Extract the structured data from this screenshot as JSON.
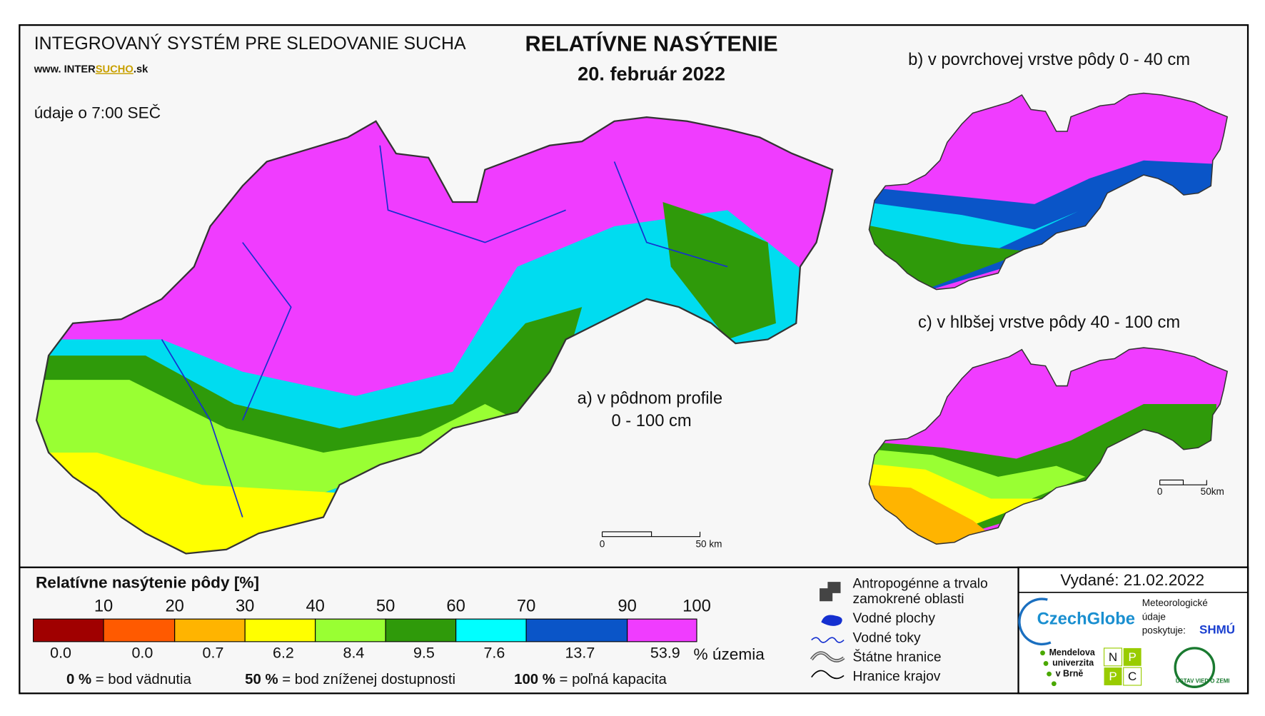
{
  "header": {
    "system": "INTEGROVANÝ SYSTÉM PRE SLEDOVANIE SUCHA",
    "url_prefix": "www. INTER",
    "url_highlight": "SUCHO",
    "url_suffix": ".sk",
    "time_note": "údaje o 7:00 SEČ"
  },
  "title": "RELATÍVNE NASÝTENIE",
  "date": "20. február 2022",
  "maps": {
    "a_line1": "a) v pôdnom profile",
    "a_line2": "0 - 100 cm",
    "b": "b) v povrchovej vrstve pôdy 0 - 40 cm",
    "c": "c) v hlbšej vrstve pôdy 40 - 100 cm"
  },
  "scale_bars": [
    {
      "zero": "0",
      "label": "50 km"
    },
    {
      "zero": "0",
      "label": "50km"
    }
  ],
  "legend": {
    "title": "Relatívne nasýtenie pôdy [%]",
    "thresholds": [
      10,
      20,
      30,
      40,
      50,
      60,
      70,
      90,
      100
    ],
    "colors": [
      "#a00000",
      "#ff5a00",
      "#ffb400",
      "#ffff00",
      "#99ff33",
      "#2f9a0a",
      "#00ffff",
      "#0a55c8",
      "#f03cff"
    ],
    "shares": [
      "0.0",
      "0.0",
      "0.7",
      "6.2",
      "8.4",
      "9.5",
      "7.6",
      "13.7",
      "53.9"
    ],
    "unit": "% územia",
    "notes": [
      {
        "key": "0 %",
        "text": "= bod vädnutia"
      },
      {
        "key": "50 %",
        "text": "= bod zníženej dostupnosti"
      },
      {
        "key": "100 %",
        "text": "= poľná kapacita"
      }
    ]
  },
  "symbols": {
    "anthropogenic_1": "Antropogénne a trvalo",
    "anthropogenic_2": "zamokrené oblasti",
    "water_bodies": "Vodné plochy",
    "rivers": "Vodné toky",
    "state_borders": "Štátne hranice",
    "region_borders": "Hranice krajov"
  },
  "issued": "Vydané: 21.02.2022",
  "logos": {
    "czechglobe": "CzechGlobe",
    "meteo_1": "Meteorologické",
    "meteo_2": "údaje",
    "meteo_3": "poskytuje:",
    "shmu": "SHMÚ",
    "mendel_1": "Mendelova",
    "mendel_2": "univerzita",
    "mendel_3": "v Brně",
    "npc": [
      "N",
      "P",
      "P",
      "C"
    ],
    "uvz": "ÚSTAV VIED O ZEMI"
  }
}
